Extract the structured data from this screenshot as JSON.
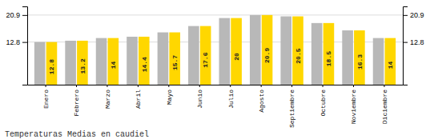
{
  "chart_data": {
    "type": "bar",
    "title": "Temperaturas Medias en caudiel",
    "categories": [
      "Enero",
      "Febrero",
      "Marzo",
      "Abril",
      "Mayo",
      "Junio",
      "Julio",
      "Agosto",
      "Septiembre",
      "Octubre",
      "Noviembre",
      "Diciembre"
    ],
    "series": [
      {
        "color": "#B8B8B8",
        "values": [
          12.8,
          13.2,
          14.0,
          14.4,
          15.7,
          17.6,
          20.0,
          20.9,
          20.5,
          18.5,
          16.3,
          14.0
        ]
      },
      {
        "color": "#FFD700",
        "data_labels": true,
        "values": [
          12.8,
          13.2,
          14.0,
          14.4,
          15.7,
          17.6,
          20.0,
          20.9,
          20.5,
          18.5,
          16.3,
          14.0
        ]
      }
    ],
    "ylim": [
      0,
      23.5
    ],
    "yticks": [
      12.8,
      20.9
    ],
    "y2lim": [
      0,
      23.5
    ],
    "y2ticks": [
      12.8,
      20.9
    ],
    "grid": true
  }
}
